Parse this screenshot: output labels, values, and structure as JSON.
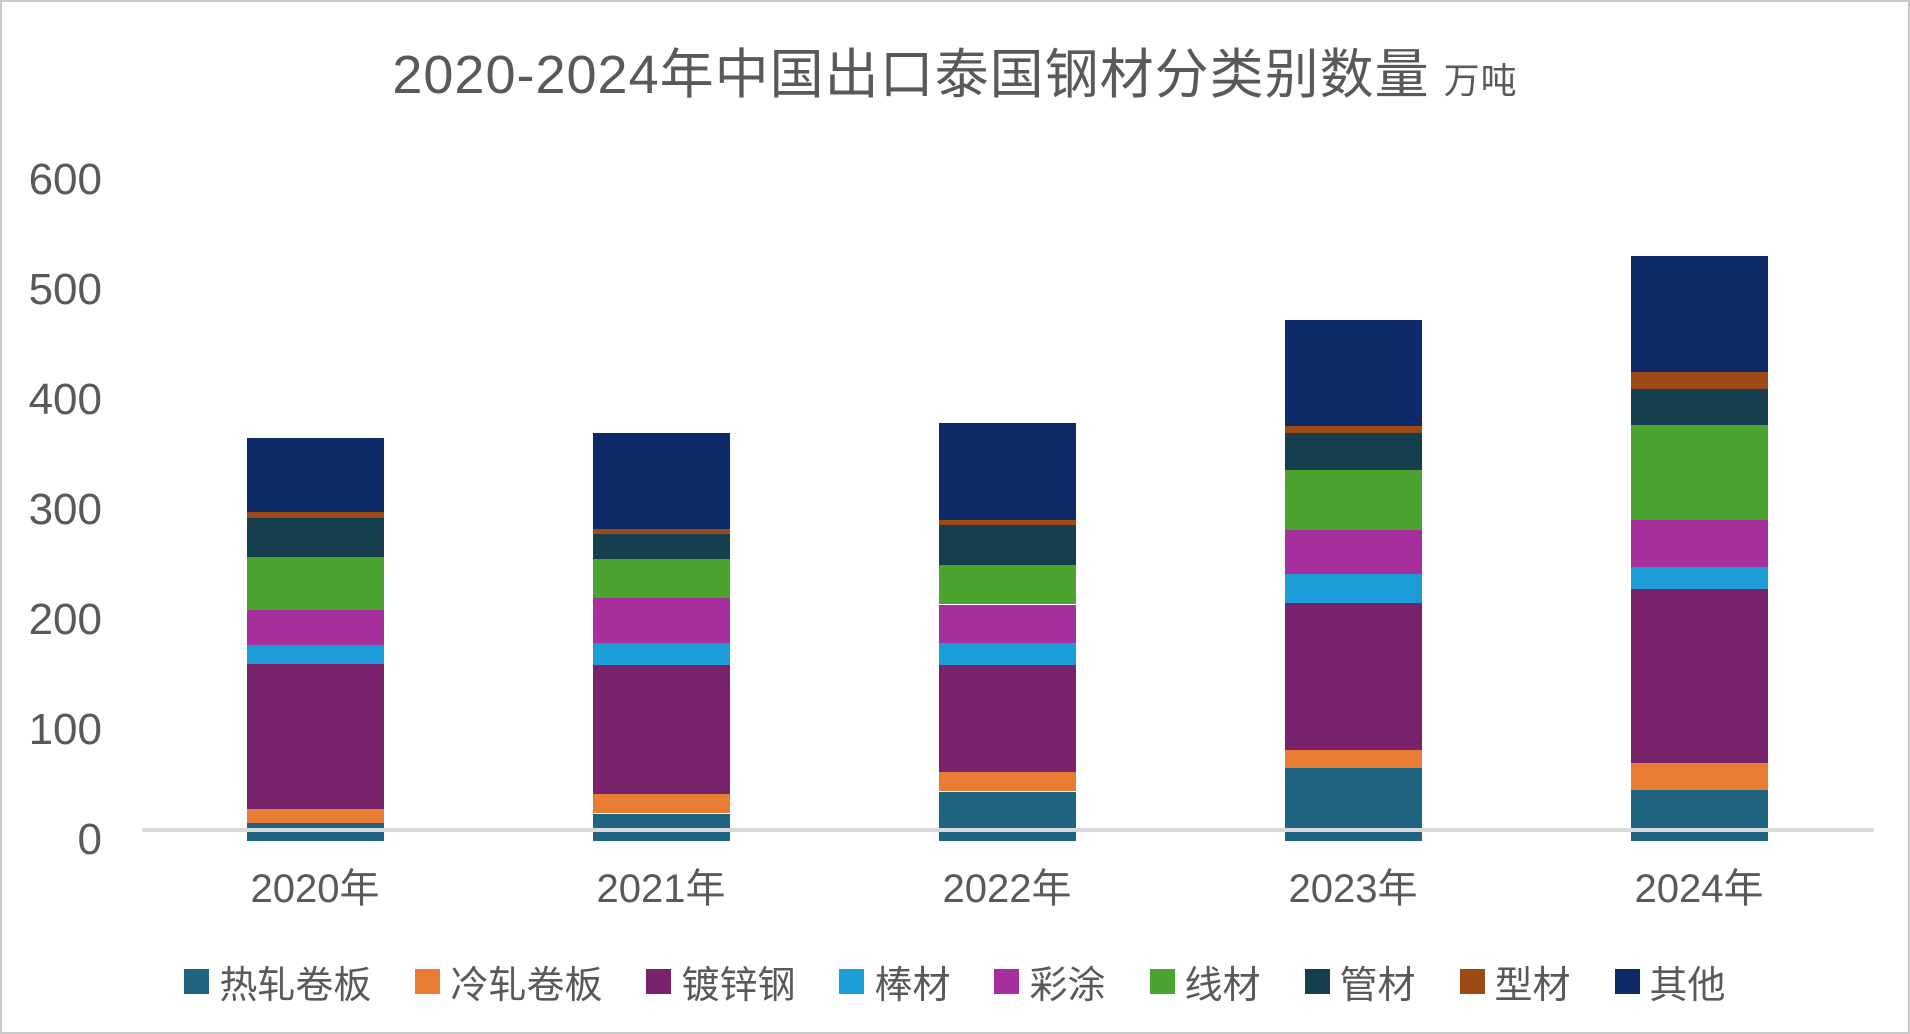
{
  "title": {
    "main": "2020-2024年中国出口泰国钢材分类别数量",
    "unit": "万吨"
  },
  "chart_data": {
    "type": "bar",
    "stacked": true,
    "title": "2020-2024年中国出口泰国钢材分类别数量",
    "unit_label": "万吨",
    "categories": [
      "2020年",
      "2021年",
      "2022年",
      "2023年",
      "2024年"
    ],
    "series": [
      {
        "name": "热轧卷板",
        "color": "#1F6480",
        "values": [
          16,
          25,
          45,
          66,
          46
        ]
      },
      {
        "name": "冷轧卷板",
        "color": "#E87D33",
        "values": [
          13,
          18,
          18,
          17,
          25
        ]
      },
      {
        "name": "镀锌钢",
        "color": "#78226B",
        "values": [
          132,
          117,
          97,
          133,
          158
        ]
      },
      {
        "name": "棒材",
        "color": "#1C9DD8",
        "values": [
          17,
          20,
          20,
          27,
          20
        ]
      },
      {
        "name": "彩涂",
        "color": "#A72F9D",
        "values": [
          32,
          41,
          35,
          40,
          43
        ]
      },
      {
        "name": "线材",
        "color": "#4CA32F",
        "values": [
          48,
          35,
          36,
          54,
          86
        ]
      },
      {
        "name": "管材",
        "color": "#153F4E",
        "values": [
          36,
          23,
          36,
          34,
          33
        ]
      },
      {
        "name": "型材",
        "color": "#9E4A17",
        "values": [
          5,
          5,
          5,
          6,
          15
        ]
      },
      {
        "name": "其他",
        "color": "#0C2A67",
        "values": [
          67,
          87,
          88,
          97,
          106
        ]
      }
    ],
    "totals": [
      366,
      371,
      380,
      474,
      532
    ],
    "ylim": [
      0,
      600
    ],
    "y_ticks": [
      0,
      100,
      200,
      300,
      400,
      500,
      600
    ],
    "grid": false,
    "legend_position": "bottom"
  },
  "style_colors": {
    "axis_line": "#d9d9d9",
    "text": "#595959",
    "frame_border": "#c9c9c9"
  }
}
